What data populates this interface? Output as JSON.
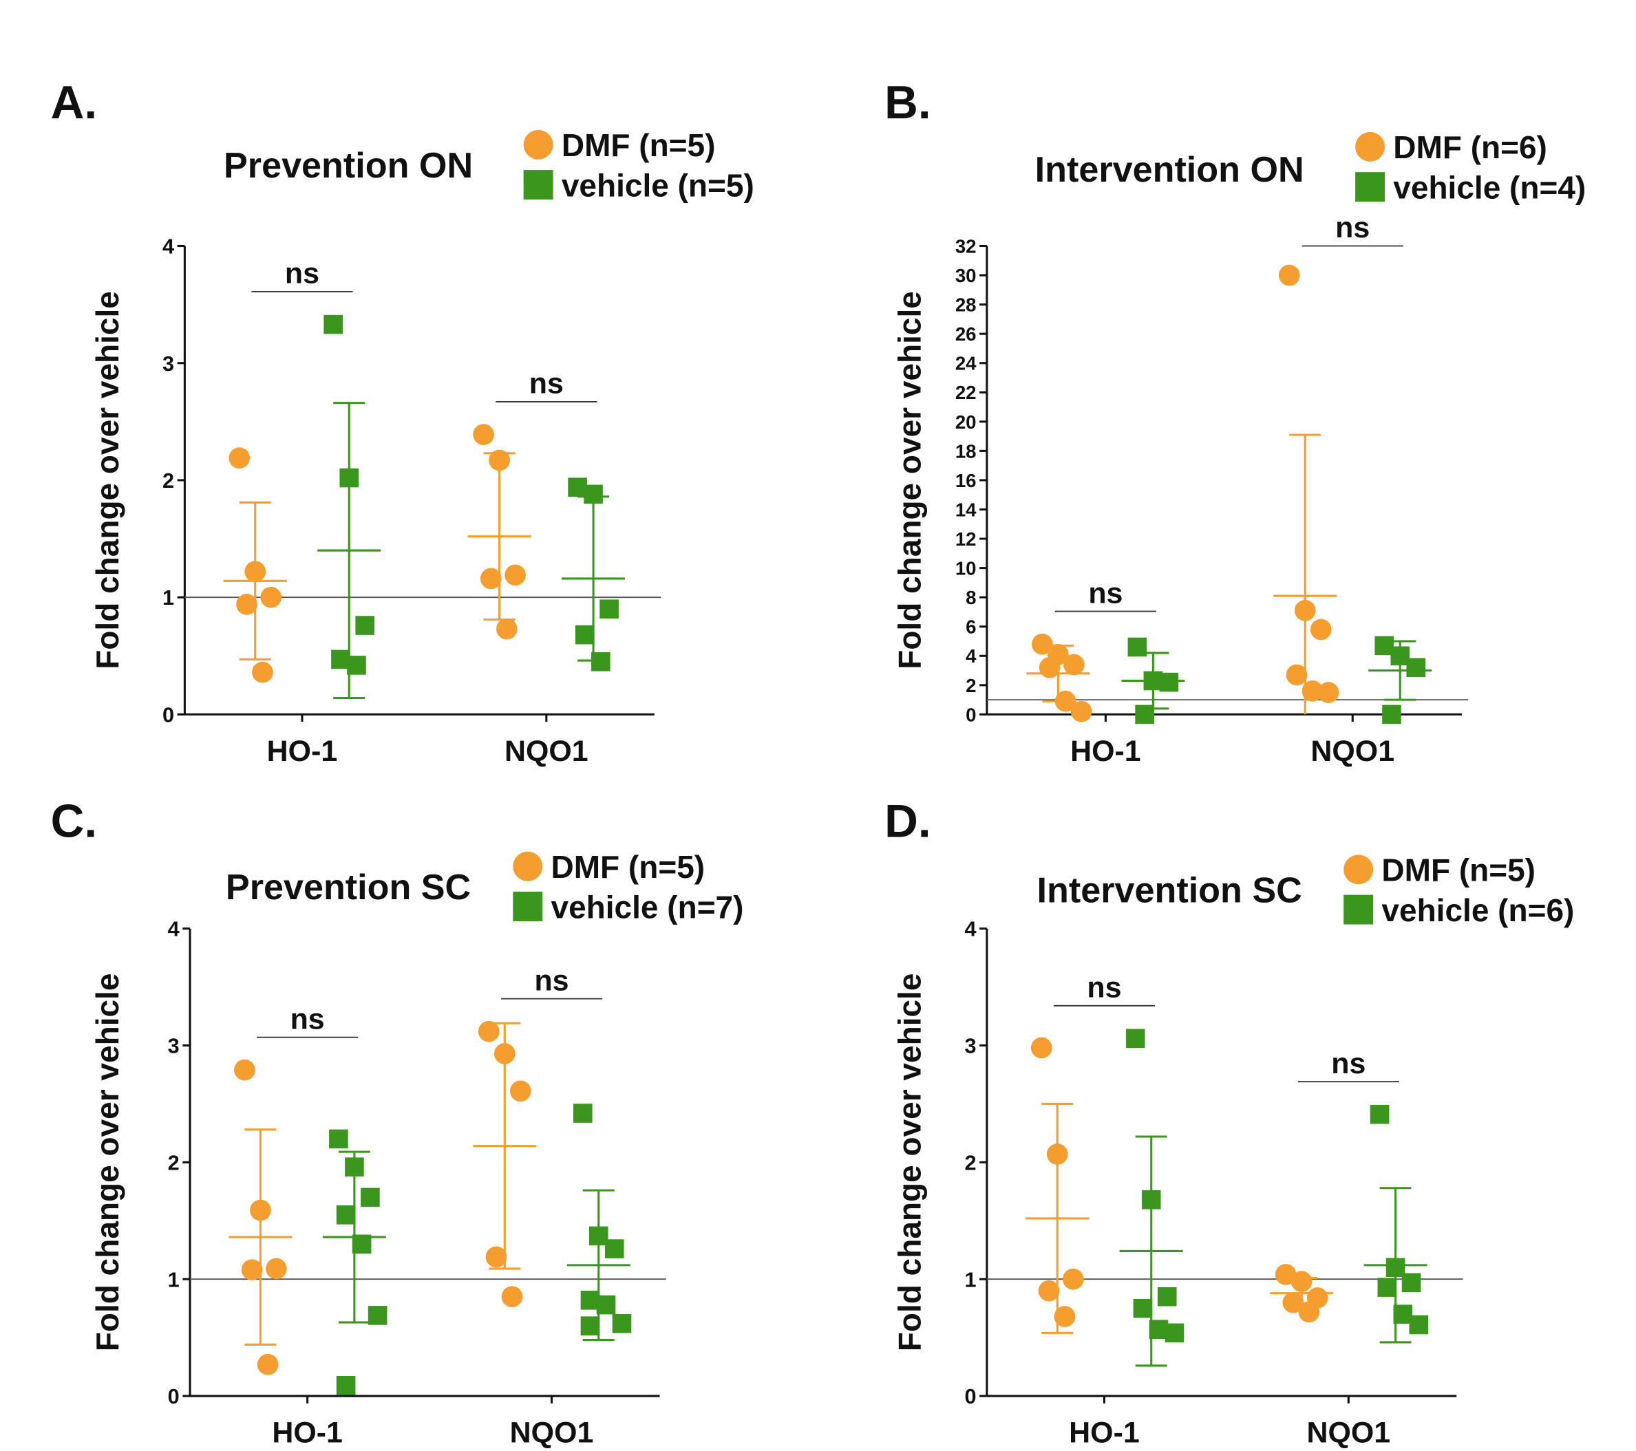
{
  "chart_data": [
    {
      "type": "dot",
      "panel": "A.",
      "title": "Prevention ON",
      "y_label": "Fold change over vehicle",
      "categories": [
        "HO-1",
        "NQO1"
      ],
      "ylim": [
        0,
        4
      ],
      "yticks": [
        0,
        1,
        2,
        3,
        4
      ],
      "reference_line": 1,
      "significance": [
        "ns",
        "ns"
      ],
      "series": [
        {
          "name": "DMF (n=5)",
          "color": "#f59d2e",
          "marker": "circle",
          "values": [
            [
              2.19,
              1.22,
              1.0,
              0.94,
              0.36
            ],
            [
              2.39,
              2.17,
              1.19,
              1.16,
              0.73
            ]
          ],
          "mean": [
            1.14,
            1.52
          ],
          "sd": [
            0.67,
            0.71
          ]
        },
        {
          "name": "vehicle (n=5)",
          "color": "#3a961c",
          "marker": "square",
          "values": [
            [
              3.33,
              2.02,
              0.76,
              0.47,
              0.42
            ],
            [
              1.94,
              1.88,
              0.9,
              0.68,
              0.45
            ]
          ],
          "mean": [
            1.4,
            1.16
          ],
          "sd": [
            1.26,
            0.7
          ]
        }
      ]
    },
    {
      "type": "dot",
      "panel": "B.",
      "title": "Intervention ON",
      "y_label": "Fold change over vehicle",
      "categories": [
        "HO-1",
        "NQO1"
      ],
      "ylim": [
        0,
        32
      ],
      "yticks": [
        0,
        2,
        4,
        6,
        8,
        10,
        12,
        14,
        16,
        18,
        20,
        22,
        24,
        26,
        28,
        30,
        32
      ],
      "reference_line": 1,
      "significance": [
        "ns",
        "ns"
      ],
      "series": [
        {
          "name": "DMF (n=6)",
          "color": "#f59d2e",
          "marker": "circle",
          "values": [
            [
              4.8,
              4.1,
              3.4,
              3.2,
              0.9,
              0.2
            ],
            [
              30.0,
              7.1,
              5.8,
              2.7,
              1.6,
              1.5
            ]
          ],
          "mean": [
            2.8,
            8.1
          ],
          "sd": [
            1.9,
            11.0
          ]
        },
        {
          "name": "vehicle (n=4)",
          "color": "#3a961c",
          "marker": "square",
          "values": [
            [
              4.6,
              2.3,
              2.2,
              0.0
            ],
            [
              4.7,
              4.0,
              3.2,
              0.0
            ]
          ],
          "mean": [
            2.3,
            3.0
          ],
          "sd": [
            1.9,
            2.0
          ]
        }
      ]
    },
    {
      "type": "dot",
      "panel": "C.",
      "title": "Prevention SC",
      "y_label": "Fold change over vehicle",
      "categories": [
        "HO-1",
        "NQO1"
      ],
      "ylim": [
        0,
        4
      ],
      "yticks": [
        0,
        1,
        2,
        3,
        4
      ],
      "reference_line": 1,
      "significance": [
        "ns",
        "ns"
      ],
      "series": [
        {
          "name": "DMF (n=5)",
          "color": "#f59d2e",
          "marker": "circle",
          "values": [
            [
              2.79,
              1.59,
              1.09,
              1.08,
              0.27
            ],
            [
              3.12,
              2.93,
              2.61,
              1.19,
              0.85
            ]
          ],
          "mean": [
            1.36,
            2.14
          ],
          "sd": [
            0.92,
            1.05
          ]
        },
        {
          "name": "vehicle (n=7)",
          "color": "#3a961c",
          "marker": "square",
          "values": [
            [
              2.2,
              1.96,
              1.7,
              1.55,
              1.3,
              0.69,
              0.09
            ],
            [
              2.42,
              1.37,
              1.26,
              0.82,
              0.78,
              0.62,
              0.6
            ]
          ],
          "mean": [
            1.36,
            1.12
          ],
          "sd": [
            0.73,
            0.64
          ]
        }
      ]
    },
    {
      "type": "dot",
      "panel": "D.",
      "title": "Intervention SC",
      "y_label": "Fold change over vehicle",
      "categories": [
        "HO-1",
        "NQO1"
      ],
      "ylim": [
        0,
        4
      ],
      "yticks": [
        0,
        1,
        2,
        3,
        4
      ],
      "reference_line": 1,
      "significance": [
        "ns",
        "ns"
      ],
      "series": [
        {
          "name": "DMF (n=5)",
          "color": "#f59d2e",
          "marker": "circle",
          "values": [
            [
              2.98,
              2.07,
              1.0,
              0.9,
              0.68
            ],
            [
              1.04,
              0.98,
              0.84,
              0.8,
              0.72
            ]
          ],
          "mean": [
            1.52,
            0.88
          ],
          "sd": [
            0.98,
            0.13
          ]
        },
        {
          "name": "vehicle (n=6)",
          "color": "#3a961c",
          "marker": "square",
          "values": [
            [
              3.06,
              1.68,
              0.85,
              0.75,
              0.57,
              0.54
            ],
            [
              2.41,
              1.1,
              0.97,
              0.93,
              0.7,
              0.61
            ]
          ],
          "mean": [
            1.24,
            1.12
          ],
          "sd": [
            0.98,
            0.66
          ]
        }
      ]
    }
  ]
}
